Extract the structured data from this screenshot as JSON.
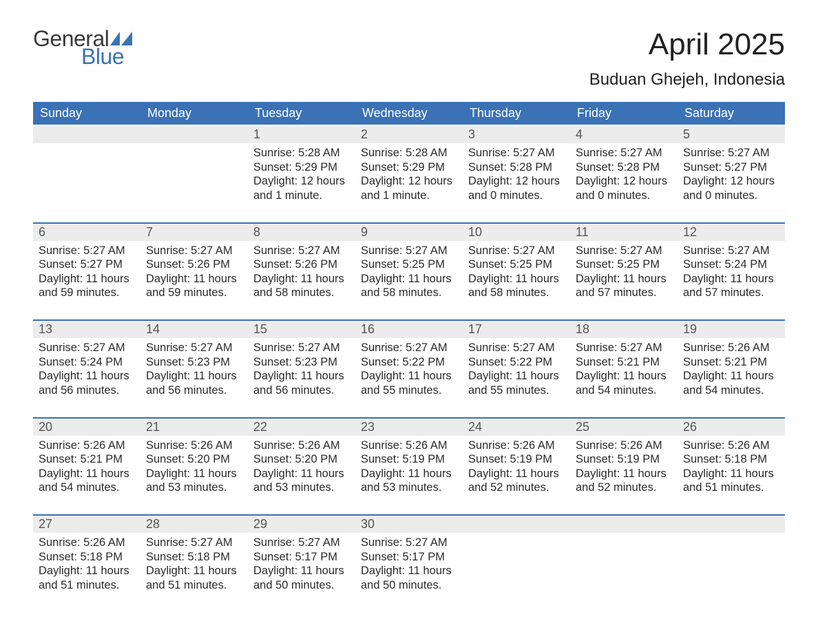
{
  "logo": {
    "word1": "General",
    "word2": "Blue",
    "flag_color": "#3a72b5"
  },
  "title": "April 2025",
  "location": "Buduan Ghejeh, Indonesia",
  "columns": [
    "Sunday",
    "Monday",
    "Tuesday",
    "Wednesday",
    "Thursday",
    "Friday",
    "Saturday"
  ],
  "colors": {
    "header_bg": "#3a72b5",
    "header_text": "#ffffff",
    "daynum_bg": "#ececec",
    "daynum_text": "#555555",
    "row_border": "#3a72b5",
    "body_text": "#2b2b2b",
    "page_bg": "#ffffff"
  },
  "typography": {
    "month_title_pt": 44,
    "location_pt": 24,
    "header_pt": 18,
    "daynum_pt": 18,
    "cell_pt": 16.5
  },
  "weeks": [
    [
      null,
      null,
      {
        "n": "1",
        "sunrise": "Sunrise: 5:28 AM",
        "sunset": "Sunset: 5:29 PM",
        "d1": "Daylight: 12 hours",
        "d2": "and 1 minute."
      },
      {
        "n": "2",
        "sunrise": "Sunrise: 5:28 AM",
        "sunset": "Sunset: 5:29 PM",
        "d1": "Daylight: 12 hours",
        "d2": "and 1 minute."
      },
      {
        "n": "3",
        "sunrise": "Sunrise: 5:27 AM",
        "sunset": "Sunset: 5:28 PM",
        "d1": "Daylight: 12 hours",
        "d2": "and 0 minutes."
      },
      {
        "n": "4",
        "sunrise": "Sunrise: 5:27 AM",
        "sunset": "Sunset: 5:28 PM",
        "d1": "Daylight: 12 hours",
        "d2": "and 0 minutes."
      },
      {
        "n": "5",
        "sunrise": "Sunrise: 5:27 AM",
        "sunset": "Sunset: 5:27 PM",
        "d1": "Daylight: 12 hours",
        "d2": "and 0 minutes."
      }
    ],
    [
      {
        "n": "6",
        "sunrise": "Sunrise: 5:27 AM",
        "sunset": "Sunset: 5:27 PM",
        "d1": "Daylight: 11 hours",
        "d2": "and 59 minutes."
      },
      {
        "n": "7",
        "sunrise": "Sunrise: 5:27 AM",
        "sunset": "Sunset: 5:26 PM",
        "d1": "Daylight: 11 hours",
        "d2": "and 59 minutes."
      },
      {
        "n": "8",
        "sunrise": "Sunrise: 5:27 AM",
        "sunset": "Sunset: 5:26 PM",
        "d1": "Daylight: 11 hours",
        "d2": "and 58 minutes."
      },
      {
        "n": "9",
        "sunrise": "Sunrise: 5:27 AM",
        "sunset": "Sunset: 5:25 PM",
        "d1": "Daylight: 11 hours",
        "d2": "and 58 minutes."
      },
      {
        "n": "10",
        "sunrise": "Sunrise: 5:27 AM",
        "sunset": "Sunset: 5:25 PM",
        "d1": "Daylight: 11 hours",
        "d2": "and 58 minutes."
      },
      {
        "n": "11",
        "sunrise": "Sunrise: 5:27 AM",
        "sunset": "Sunset: 5:25 PM",
        "d1": "Daylight: 11 hours",
        "d2": "and 57 minutes."
      },
      {
        "n": "12",
        "sunrise": "Sunrise: 5:27 AM",
        "sunset": "Sunset: 5:24 PM",
        "d1": "Daylight: 11 hours",
        "d2": "and 57 minutes."
      }
    ],
    [
      {
        "n": "13",
        "sunrise": "Sunrise: 5:27 AM",
        "sunset": "Sunset: 5:24 PM",
        "d1": "Daylight: 11 hours",
        "d2": "and 56 minutes."
      },
      {
        "n": "14",
        "sunrise": "Sunrise: 5:27 AM",
        "sunset": "Sunset: 5:23 PM",
        "d1": "Daylight: 11 hours",
        "d2": "and 56 minutes."
      },
      {
        "n": "15",
        "sunrise": "Sunrise: 5:27 AM",
        "sunset": "Sunset: 5:23 PM",
        "d1": "Daylight: 11 hours",
        "d2": "and 56 minutes."
      },
      {
        "n": "16",
        "sunrise": "Sunrise: 5:27 AM",
        "sunset": "Sunset: 5:22 PM",
        "d1": "Daylight: 11 hours",
        "d2": "and 55 minutes."
      },
      {
        "n": "17",
        "sunrise": "Sunrise: 5:27 AM",
        "sunset": "Sunset: 5:22 PM",
        "d1": "Daylight: 11 hours",
        "d2": "and 55 minutes."
      },
      {
        "n": "18",
        "sunrise": "Sunrise: 5:27 AM",
        "sunset": "Sunset: 5:21 PM",
        "d1": "Daylight: 11 hours",
        "d2": "and 54 minutes."
      },
      {
        "n": "19",
        "sunrise": "Sunrise: 5:26 AM",
        "sunset": "Sunset: 5:21 PM",
        "d1": "Daylight: 11 hours",
        "d2": "and 54 minutes."
      }
    ],
    [
      {
        "n": "20",
        "sunrise": "Sunrise: 5:26 AM",
        "sunset": "Sunset: 5:21 PM",
        "d1": "Daylight: 11 hours",
        "d2": "and 54 minutes."
      },
      {
        "n": "21",
        "sunrise": "Sunrise: 5:26 AM",
        "sunset": "Sunset: 5:20 PM",
        "d1": "Daylight: 11 hours",
        "d2": "and 53 minutes."
      },
      {
        "n": "22",
        "sunrise": "Sunrise: 5:26 AM",
        "sunset": "Sunset: 5:20 PM",
        "d1": "Daylight: 11 hours",
        "d2": "and 53 minutes."
      },
      {
        "n": "23",
        "sunrise": "Sunrise: 5:26 AM",
        "sunset": "Sunset: 5:19 PM",
        "d1": "Daylight: 11 hours",
        "d2": "and 53 minutes."
      },
      {
        "n": "24",
        "sunrise": "Sunrise: 5:26 AM",
        "sunset": "Sunset: 5:19 PM",
        "d1": "Daylight: 11 hours",
        "d2": "and 52 minutes."
      },
      {
        "n": "25",
        "sunrise": "Sunrise: 5:26 AM",
        "sunset": "Sunset: 5:19 PM",
        "d1": "Daylight: 11 hours",
        "d2": "and 52 minutes."
      },
      {
        "n": "26",
        "sunrise": "Sunrise: 5:26 AM",
        "sunset": "Sunset: 5:18 PM",
        "d1": "Daylight: 11 hours",
        "d2": "and 51 minutes."
      }
    ],
    [
      {
        "n": "27",
        "sunrise": "Sunrise: 5:26 AM",
        "sunset": "Sunset: 5:18 PM",
        "d1": "Daylight: 11 hours",
        "d2": "and 51 minutes."
      },
      {
        "n": "28",
        "sunrise": "Sunrise: 5:27 AM",
        "sunset": "Sunset: 5:18 PM",
        "d1": "Daylight: 11 hours",
        "d2": "and 51 minutes."
      },
      {
        "n": "29",
        "sunrise": "Sunrise: 5:27 AM",
        "sunset": "Sunset: 5:17 PM",
        "d1": "Daylight: 11 hours",
        "d2": "and 50 minutes."
      },
      {
        "n": "30",
        "sunrise": "Sunrise: 5:27 AM",
        "sunset": "Sunset: 5:17 PM",
        "d1": "Daylight: 11 hours",
        "d2": "and 50 minutes."
      },
      null,
      null,
      null
    ]
  ]
}
